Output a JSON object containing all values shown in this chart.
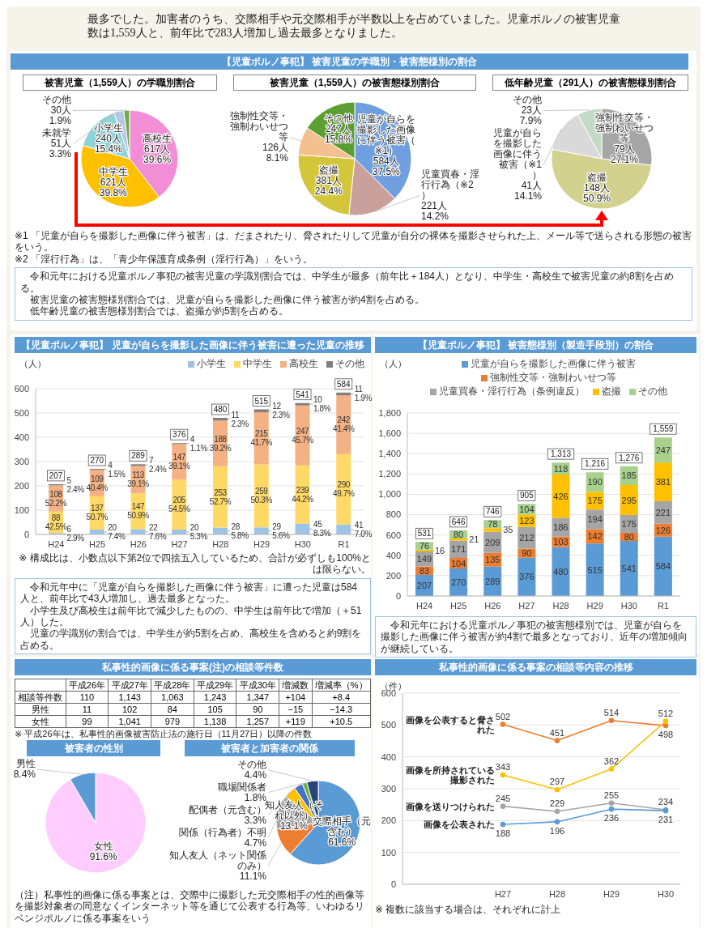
{
  "chart_data": [
    {
      "type": "other",
      "annotations": [
        "最多でした。加害者のうち、交際相手や元交際相手が半数以上を占めていました。児童ポルノの被害児童数は1,559人と、前年比で283人増加し過去最多となりました。"
      ]
    },
    {
      "type": "pie",
      "subtitle": "被害児童（1,559人）の学職別割合",
      "categories": [
        "高校生",
        "中学生",
        "小学生",
        "未就学",
        "その他"
      ],
      "values": [
        617,
        621,
        240,
        51,
        30
      ],
      "value_labels": [
        "617人\n39.6%",
        "621人\n39.8%",
        "240人\n15.4%",
        "51人\n3.3%",
        "30人\n1.9%"
      ],
      "colors": [
        "#f28ed6",
        "#ffc000",
        "#8ed3d6",
        "#b4c7e7",
        "#70ad47"
      ]
    },
    {
      "type": "pie",
      "title": "【児童ポルノ事犯】 被害児童の学職別・被害態様別の割合",
      "subtitle": "被害児童（1,559人）の被害態様別割合",
      "categories": [
        "児童が自らを撮影した画像に伴う被害（※1）",
        "児童買春・淫行行為（※2）",
        "盗撮",
        "強制性交等・強制わいせつ等",
        "その他"
      ],
      "values": [
        584,
        221,
        381,
        126,
        247
      ],
      "value_labels": [
        "584人\n37.5%",
        "221人\n14.2%",
        "381人\n24.4%",
        "126人\n8.1%",
        "247人\n15.8%"
      ],
      "colors": [
        "#6f9fde",
        "#c9a09b",
        "#d3c63a",
        "#f4c08f",
        "#5c9e31"
      ]
    },
    {
      "type": "pie",
      "subtitle": "低年齢児童（291人）の被害態様別割合",
      "categories": [
        "強制性交等・強制わいせつ等",
        "盗撮",
        "児童が自らを撮影した画像に伴う被害（※1）",
        "その他"
      ],
      "values": [
        79,
        148,
        41,
        23
      ],
      "value_labels": [
        "79人\n27.1%",
        "148人\n50.9%",
        "41人\n14.1%",
        "23人\n7.9%"
      ],
      "colors": [
        "#a6a6a6",
        "#d3d18e",
        "#d9d9d9",
        "#c3dbc4"
      ],
      "annotations": [
        "※1 「児童が自らを撮影した画像に伴う被害」は、だまされたり、脅されたりして児童が自分の裸体を撮影させられた上、メール等で送らされる形態の被害をいう。",
        "※2 「淫行行為」は、「青少年保護育成条例（淫行行為）」をいう。",
        "令和元年における児童ポルノ事犯の被害児童の学識別割合では、中学生が最多（前年比＋184人）となり、中学生・高校生で被害児童の約8割を占める。",
        "被害児童の被害態様別割合では、児童が自らを撮影した画像に伴う被害が約4割を占める。",
        "低年齢児童の被害態様別割合では、盗撮が約5割を占める。"
      ]
    },
    {
      "type": "bar",
      "title": "【児童ポルノ事犯】 児童が自らを撮影した画像に伴う被害に遭った児童の推移",
      "ylabel": "（人）",
      "categories": [
        "H24",
        "H25",
        "H26",
        "H27",
        "H28",
        "H29",
        "H30",
        "R1"
      ],
      "stacked": true,
      "ylim": [
        0,
        600
      ],
      "yticks": [
        0,
        100,
        200,
        300,
        400,
        500,
        600
      ],
      "grid": "y",
      "legend": "top right",
      "series": [
        {
          "name": "小学生",
          "color": "#9dc3e6",
          "values": [
            6,
            20,
            22,
            20,
            28,
            29,
            45,
            41
          ],
          "value_labels": [
            "6\n2.9%",
            "20\n7.4%",
            "22\n7.6%",
            "20\n5.3%",
            "28\n5.8%",
            "29\n5.6%",
            "45\n8.3%",
            "41\n7.0%"
          ]
        },
        {
          "name": "中学生",
          "color": "#ffd966",
          "values": [
            88,
            137,
            147,
            205,
            253,
            259,
            239,
            290
          ],
          "value_labels": [
            "88\n42.5%",
            "137\n50.7%",
            "147\n50.9%",
            "205\n54.5%",
            "253\n52.7%",
            "259\n50.3%",
            "239\n44.2%",
            "290\n49.7%"
          ]
        },
        {
          "name": "高校生",
          "color": "#f4b183",
          "values": [
            108,
            109,
            113,
            147,
            188,
            215,
            247,
            242
          ],
          "value_labels": [
            "108\n52.2%",
            "109\n40.4%",
            "113\n39.1%",
            "147\n39.1%",
            "188\n39.2%",
            "215\n41.7%",
            "247\n45.7%",
            "242\n41.4%"
          ]
        },
        {
          "name": "その他",
          "color": "#7f7f7f",
          "values": [
            5,
            4,
            7,
            4,
            11,
            12,
            10,
            11
          ],
          "value_labels": [
            "5\n2.4%",
            "4\n1.5%",
            "7\n2.4%",
            "4\n1.1%",
            "11\n2.3%",
            "12\n2.3%",
            "10\n1.8%",
            "11\n1.9%"
          ]
        }
      ],
      "totals": [
        "207",
        "270",
        "289",
        "376",
        "480",
        "515",
        "541",
        "584"
      ],
      "annotations": [
        "※ 構成比は、小数点以下第2位で四捨五入しているため、合計が必ずしも100%とは限らない。",
        "令和元年中に「児童が自らを撮影した画像に伴う被害」に遭った児童は584人と、前年比で43人増加し、過去最多となった。",
        "小学生及び高校生は前年比で減少したものの、中学生は前年比で増加（＋51人）した。",
        "児童の学識別の割合では、中学生が約5割を占め、高校生を含めると約9割を占める。"
      ]
    },
    {
      "type": "bar",
      "title": "【児童ポルノ事犯】 被害態様別（製造手段別）の割合",
      "ylabel": "（人）",
      "categories": [
        "H24",
        "H25",
        "H26",
        "H27",
        "H28",
        "H29",
        "H30",
        "R1"
      ],
      "stacked": true,
      "data_labels": true,
      "ylim": [
        0,
        1800
      ],
      "yticks": [
        0,
        200,
        400,
        600,
        800,
        {
          "value": 1000,
          "label": "1,000"
        },
        {
          "value": 1200,
          "label": "1,200"
        },
        {
          "value": 1400,
          "label": "1,400"
        },
        {
          "value": 1600,
          "label": "1,600"
        },
        {
          "value": 1800,
          "label": "1,800"
        }
      ],
      "grid": "y",
      "legend": "top",
      "series": [
        {
          "name": "児童が自らを撮影した画像に伴う被害",
          "color": "#5b9bd5",
          "values": [
            207,
            270,
            289,
            376,
            480,
            515,
            541,
            584
          ]
        },
        {
          "name": "強制性交等・強制わいせつ等",
          "color": "#ed7d31",
          "values": [
            83,
            104,
            135,
            90,
            103,
            142,
            80,
            126
          ]
        },
        {
          "name": "児童買春・淫行行為（条例違反）",
          "color": "#a5a5a5",
          "values": [
            149,
            171,
            209,
            212,
            186,
            194,
            175,
            221
          ]
        },
        {
          "name": "盗撮",
          "color": "#ffc000",
          "values": [
            16,
            21,
            35,
            123,
            426,
            175,
            295,
            381
          ]
        },
        {
          "name": "その他",
          "color": "#a9d18e",
          "values": [
            76,
            80,
            78,
            104,
            118,
            190,
            185,
            247
          ]
        }
      ],
      "totals": [
        "531",
        "646",
        "746",
        "905",
        "1,313",
        "1,216",
        "1,276",
        "1,559"
      ],
      "annotations": [
        "令和元年における児童ポルノ事犯の被害態様別では、児童が自らを撮影した画像に伴う被害が約4割で最多となっており、近年の増加傾向が継続している。"
      ]
    },
    {
      "type": "other",
      "title": "私事性的画像に係る事案(注)の相談等件数",
      "categories": [
        "平成26年",
        "平成27年",
        "平成28年",
        "平成29年",
        "平成30年",
        "増減数",
        "増減率（%）"
      ],
      "y_categories": [
        "相談等件数",
        "男性",
        "女性"
      ],
      "cell_labels": [
        [
          "110",
          "1,143",
          "1,063",
          "1,243",
          "1,347",
          "+104",
          "+8.4"
        ],
        [
          "11",
          "102",
          "84",
          "105",
          "90",
          "−15",
          "−14.3"
        ],
        [
          "99",
          "1,041",
          "979",
          "1,138",
          "1,257",
          "+119",
          "+10.5"
        ]
      ],
      "annotations": [
        "※ 平成26年は、私事性的画像被害防止法の施行日（11月27日）以降の件数"
      ]
    },
    {
      "type": "pie",
      "title": "被害者の性別",
      "categories": [
        "女性",
        "男性"
      ],
      "values": [
        91.6,
        8.4
      ],
      "value_labels": [
        "91.6%",
        "8.4%"
      ],
      "colors": [
        "#ffccff",
        "#5b9bd5"
      ]
    },
    {
      "type": "pie",
      "title": "被害者と加害者の関係",
      "categories": [
        "交際相手（元含む）",
        "知人友人（ネット関係のみ）",
        "知人友人（それ以外）",
        "関係（行為者）不明",
        "配偶者（元含む）",
        "職場関係者",
        "その他"
      ],
      "values": [
        61.6,
        11.1,
        13.1,
        4.7,
        3.3,
        1.8,
        4.4
      ],
      "value_labels": [
        "61.6%",
        "11.1%",
        "13.1%",
        "4.7%",
        "3.3%",
        "1.8%",
        "4.4%"
      ],
      "colors": [
        "#5b9bd5",
        "#ed7d31",
        "#a5a5a5",
        "#ffc000",
        "#4472c4",
        "#70ad47",
        "#264478"
      ],
      "annotations": [
        "（注）私事性的画像に係る事案とは、交際中に撮影した元交際相手の性的画像等を撮影対象者の同意なくインターネット等を通じて公表する行為等、いわゆるリベンジポルノに係る事案をいう"
      ]
    },
    {
      "type": "line",
      "title": "私事性的画像に係る事案の相談等内容の推移",
      "ylabel": "（件）",
      "categories": [
        "H27",
        "H28",
        "H29",
        "H30"
      ],
      "ylim": [
        0,
        600
      ],
      "yticks": [
        0,
        100,
        200,
        300,
        400,
        500,
        600
      ],
      "grid": "y",
      "marker": "circle",
      "data_labels": true,
      "series": [
        {
          "name": "画像を公表すると脅された",
          "color": "#ed7d31",
          "values": [
            502,
            451,
            514,
            498
          ]
        },
        {
          "name": "画像を所持されている撮影された",
          "color": "#ffc000",
          "values": [
            343,
            297,
            362,
            512
          ]
        },
        {
          "name": "画像を送りつけられた",
          "color": "#a5a5a5",
          "values": [
            245,
            229,
            255,
            234
          ]
        },
        {
          "name": "画像を公表された",
          "color": "#5b9bd5",
          "values": [
            188,
            196,
            236,
            231
          ]
        }
      ],
      "annotations": [
        "※ 複数に該当する場合は、それぞれに計上"
      ]
    }
  ]
}
